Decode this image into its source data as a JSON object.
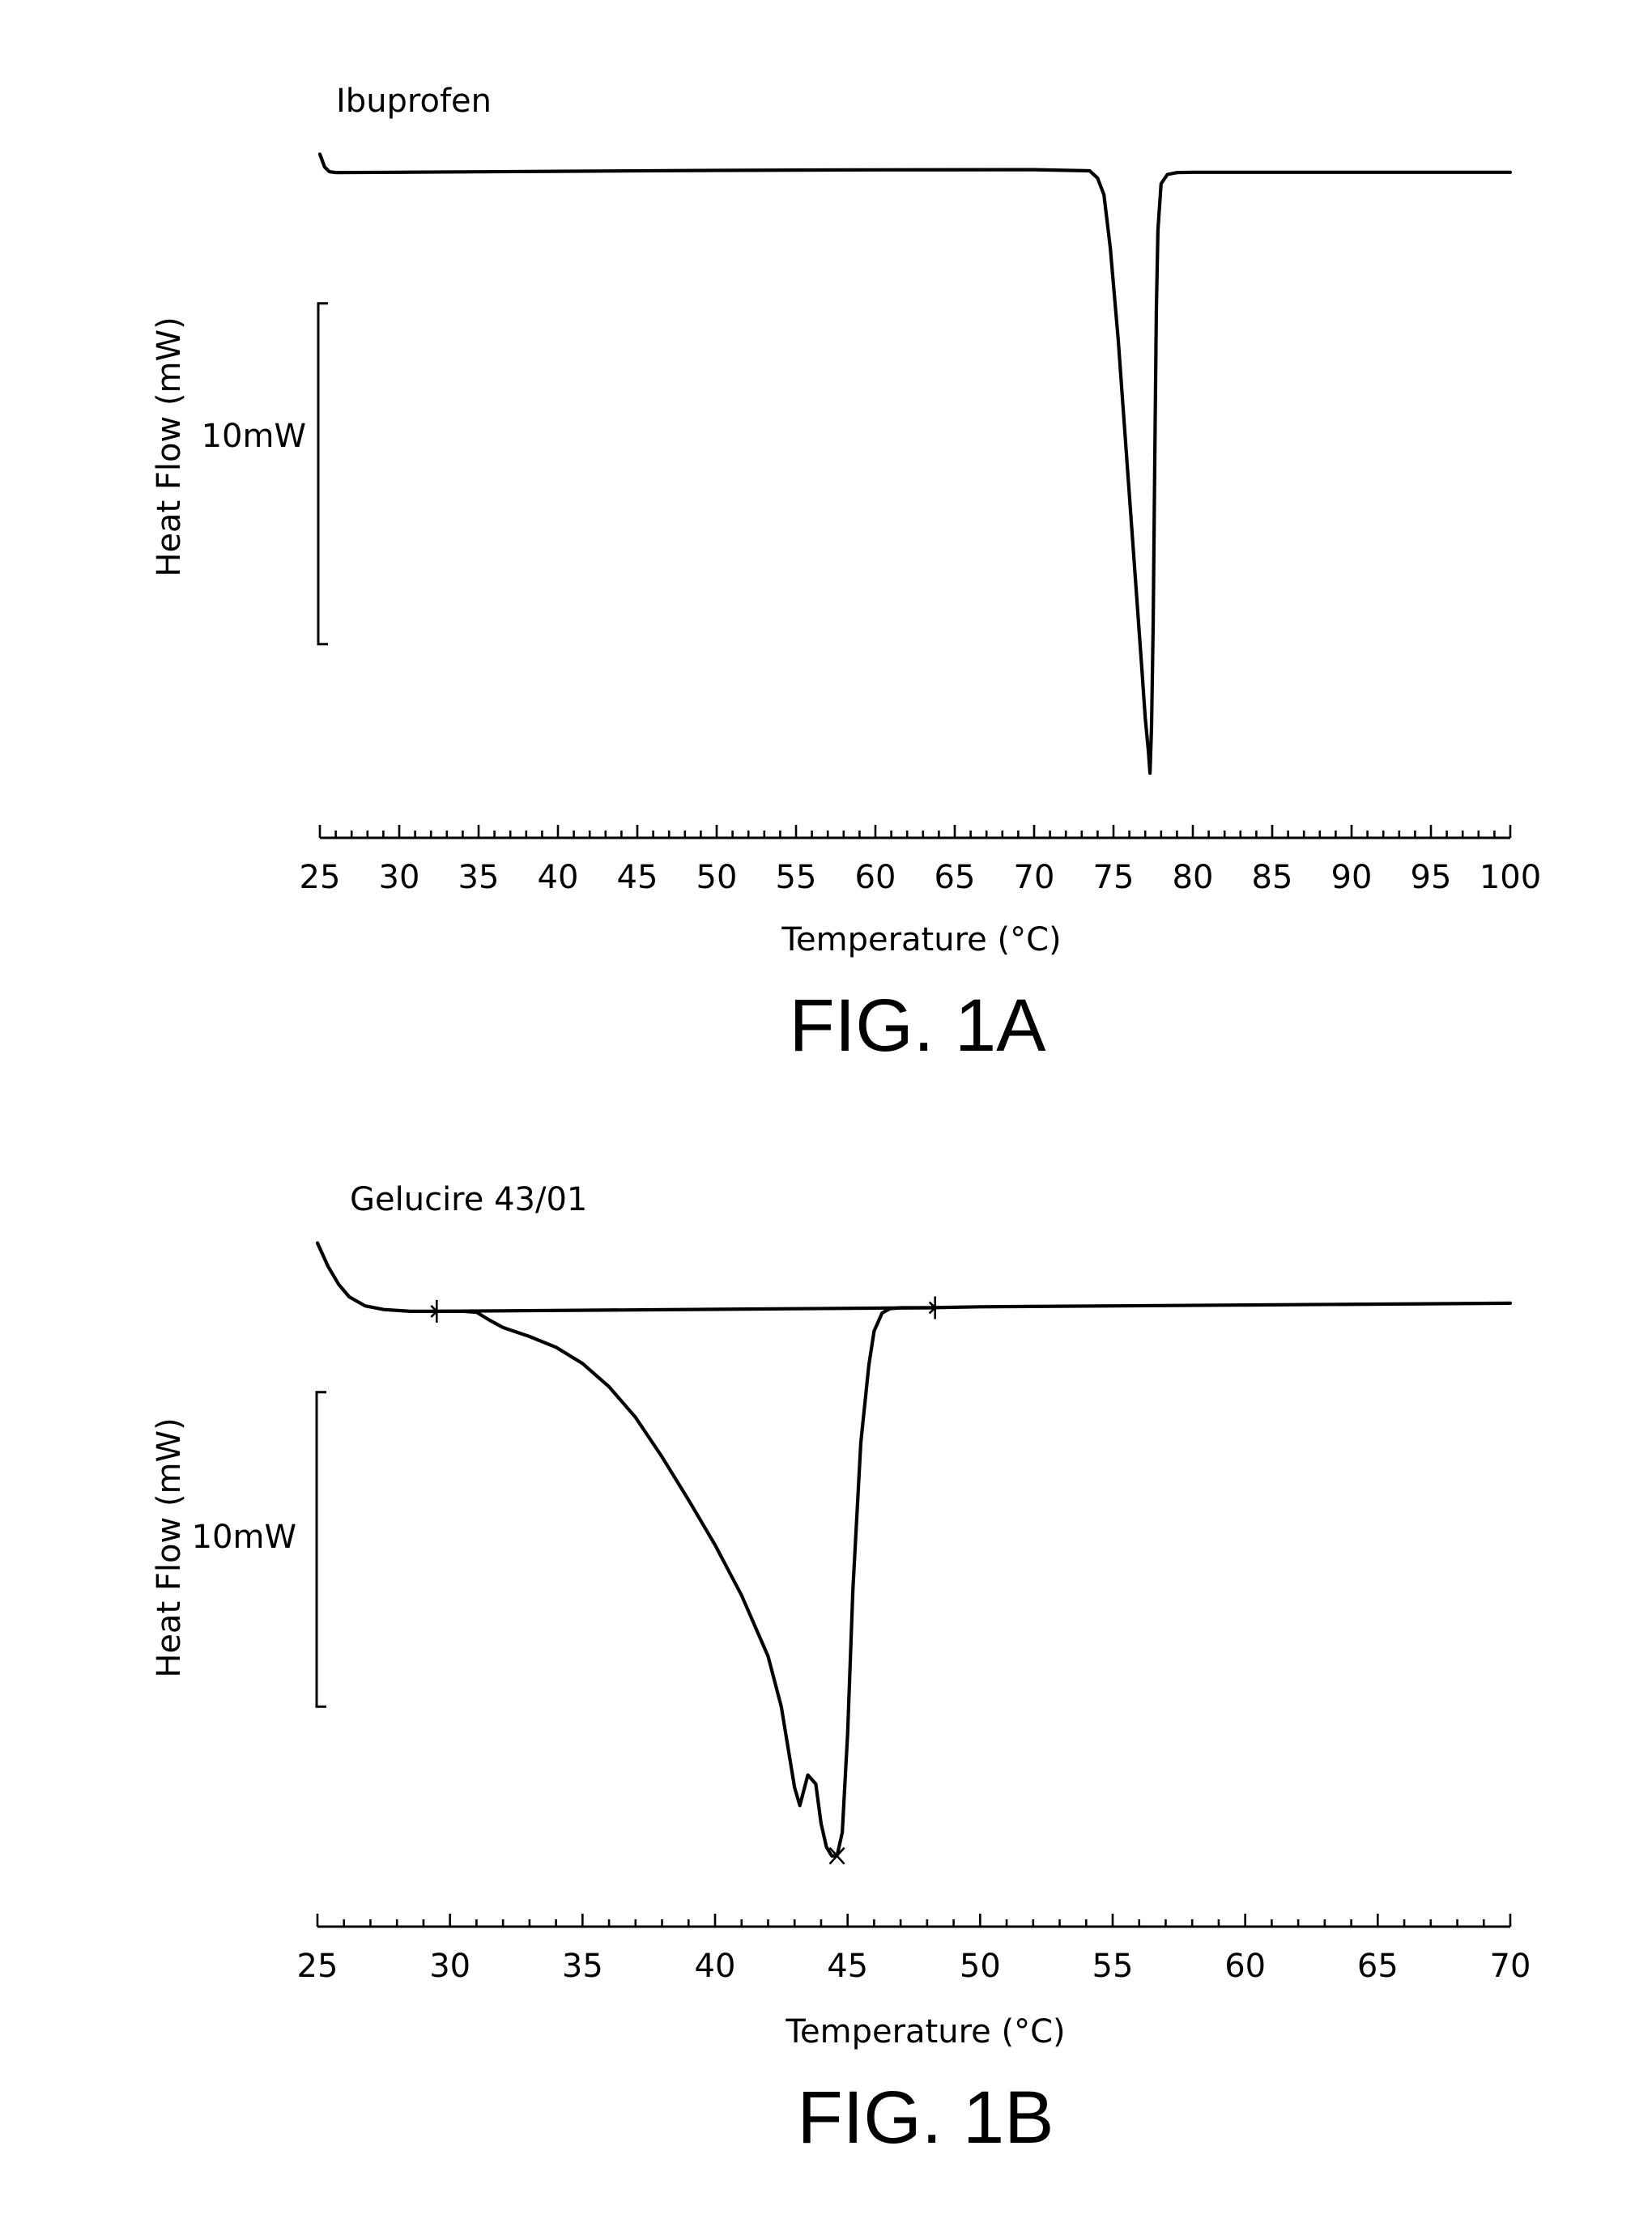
{
  "chart_data": [
    {
      "type": "line",
      "caption": "FIG. 1A",
      "title": "",
      "xlabel": "Temperature (°C)",
      "ylabel": "Heat Flow (mW)",
      "xlim": [
        25,
        100
      ],
      "xticks": [
        25,
        30,
        35,
        40,
        45,
        50,
        55,
        60,
        65,
        70,
        75,
        80,
        85,
        90,
        95,
        100
      ],
      "xtick_labels": [
        "25",
        "30",
        "35",
        "40",
        "45",
        "50",
        "55",
        "60",
        "65",
        "70",
        "75",
        "80",
        "85",
        "90",
        "95",
        "100"
      ],
      "minor_tick_step": 1,
      "ylim": [
        -33,
        1.5
      ],
      "scale_bar": {
        "label": "10mW",
        "from": -26,
        "to": -7.5
      },
      "grid": false,
      "series": [
        {
          "name": "Ibuprofen",
          "x": [
            25.0,
            25.3,
            25.6,
            26.0,
            30,
            40,
            50,
            60,
            70,
            73.5,
            74.0,
            74.4,
            74.8,
            75.3,
            75.8,
            76.3,
            76.8,
            77.0,
            77.2,
            77.3,
            77.4,
            77.5,
            77.6,
            77.7,
            77.8,
            78.0,
            78.4,
            79.0,
            80,
            90,
            100
          ],
          "y": [
            0.6,
            -0.1,
            -0.35,
            -0.4,
            -0.38,
            -0.33,
            -0.28,
            -0.25,
            -0.24,
            -0.3,
            -0.7,
            -1.6,
            -4.5,
            -9.5,
            -15.5,
            -21.5,
            -27.5,
            -30.0,
            -31.8,
            -33.0,
            -30.5,
            -25.0,
            -16.0,
            -8.0,
            -3.5,
            -1.0,
            -0.5,
            -0.4,
            -0.38,
            -0.38,
            -0.38
          ]
        }
      ]
    },
    {
      "type": "line",
      "caption": "FIG. 1B",
      "title": "",
      "xlabel": "Temperature (°C)",
      "ylabel": "Heat Flow (mW)",
      "xlim": [
        25,
        70
      ],
      "xticks": [
        25,
        30,
        35,
        40,
        45,
        50,
        55,
        60,
        65,
        70
      ],
      "xtick_labels": [
        "25",
        "30",
        "35",
        "40",
        "45",
        "50",
        "55",
        "60",
        "65",
        "70"
      ],
      "minor_tick_step": 1,
      "ylim": [
        -31,
        4
      ],
      "scale_bar": {
        "label": "10mW",
        "from": -22.5,
        "to": -5
      },
      "integration_limits": [
        29.5,
        48.3
      ],
      "peak_marker": {
        "x": 44.6,
        "y": -30.8
      },
      "grid": false,
      "series": [
        {
          "name": "Gelucire 43/01",
          "x": [
            25.0,
            25.4,
            25.8,
            26.2,
            26.8,
            27.5,
            28.5,
            29.5,
            30.5,
            31.0,
            31.5,
            32.0,
            33.0,
            34.0,
            35.0,
            36.0,
            37.0,
            38.0,
            39.0,
            40.0,
            41.0,
            42.0,
            42.5,
            43.0,
            43.2,
            43.5,
            43.8,
            44.0,
            44.2,
            44.4,
            44.6,
            44.8,
            45.0,
            45.2,
            45.5,
            45.8,
            46.0,
            46.3,
            46.6,
            47.0,
            48.0,
            50,
            60,
            70
          ],
          "y": [
            3.3,
            2.0,
            1.0,
            0.3,
            -0.2,
            -0.4,
            -0.5,
            -0.5,
            -0.5,
            -0.55,
            -1.0,
            -1.4,
            -1.9,
            -2.5,
            -3.4,
            -4.7,
            -6.4,
            -8.6,
            -11.0,
            -13.5,
            -16.3,
            -19.7,
            -22.5,
            -27.0,
            -28.0,
            -26.3,
            -26.8,
            -29.0,
            -30.3,
            -30.8,
            -30.8,
            -29.5,
            -24.0,
            -16.0,
            -7.8,
            -3.5,
            -1.6,
            -0.6,
            -0.35,
            -0.3,
            -0.3,
            -0.25,
            -0.15,
            -0.05
          ]
        }
      ]
    }
  ]
}
